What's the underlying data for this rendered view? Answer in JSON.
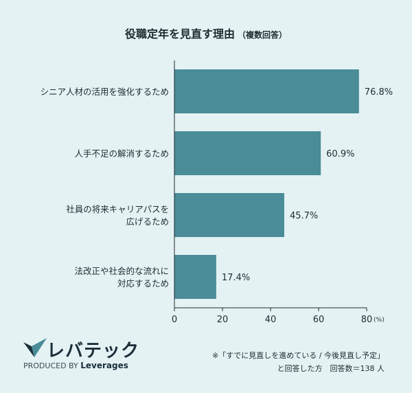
{
  "title": "役職定年を見直す理由",
  "title_note": "（複数回答）",
  "chart_data": {
    "type": "bar",
    "orientation": "horizontal",
    "categories": [
      [
        "シニア人材の活用を強化するため"
      ],
      [
        "人手不足の解消するため"
      ],
      [
        "社員の将来キャリアパスを",
        "広げるため"
      ],
      [
        "法改正や社会的な流れに",
        "対応するため"
      ]
    ],
    "values": [
      76.8,
      60.9,
      45.7,
      17.4
    ],
    "value_labels": [
      "76.8%",
      "60.9%",
      "45.7%",
      "17.4%"
    ],
    "xlim": [
      0,
      80
    ],
    "ticks": [
      0,
      20,
      40,
      60,
      80
    ],
    "tick_labels": [
      "0",
      "20",
      "40",
      "60",
      "80"
    ],
    "unit_label": "(%)",
    "bar_color": "#4a8c98",
    "grid": false
  },
  "footnote": {
    "line1": "※「すでに見直しを進めている / 今後見直し予定」",
    "line2": "と回答した方　回答数＝138 人"
  },
  "logo": {
    "wordmark": "レバテック",
    "tagline_prefix": "PRODUCED BY",
    "tagline_brand": "Leverages"
  }
}
